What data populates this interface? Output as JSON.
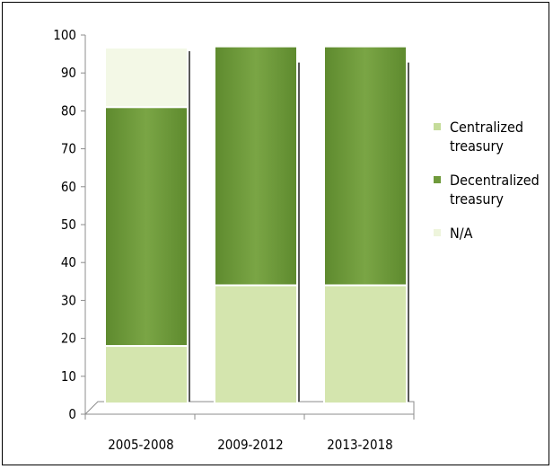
{
  "chart_data": {
    "type": "bar",
    "stacked": true,
    "categories": [
      "2005-2008",
      "2009-2012",
      "2013-2018"
    ],
    "series": [
      {
        "name": "Centralized treasury",
        "values": [
          18,
          34,
          34
        ],
        "color": "#d4e5ae"
      },
      {
        "name": "Decentralized treasury",
        "values": [
          63,
          63,
          63
        ],
        "color": "#6f9a3b"
      },
      {
        "name": "N/A",
        "values": [
          19,
          0,
          0
        ],
        "color": "#f3f8e6"
      }
    ],
    "ylim": [
      0,
      100
    ],
    "yticks": [
      0,
      10,
      20,
      30,
      40,
      50,
      60,
      70,
      80,
      90,
      100
    ],
    "title": "",
    "xlabel": "",
    "ylabel": "",
    "legend": "right"
  }
}
